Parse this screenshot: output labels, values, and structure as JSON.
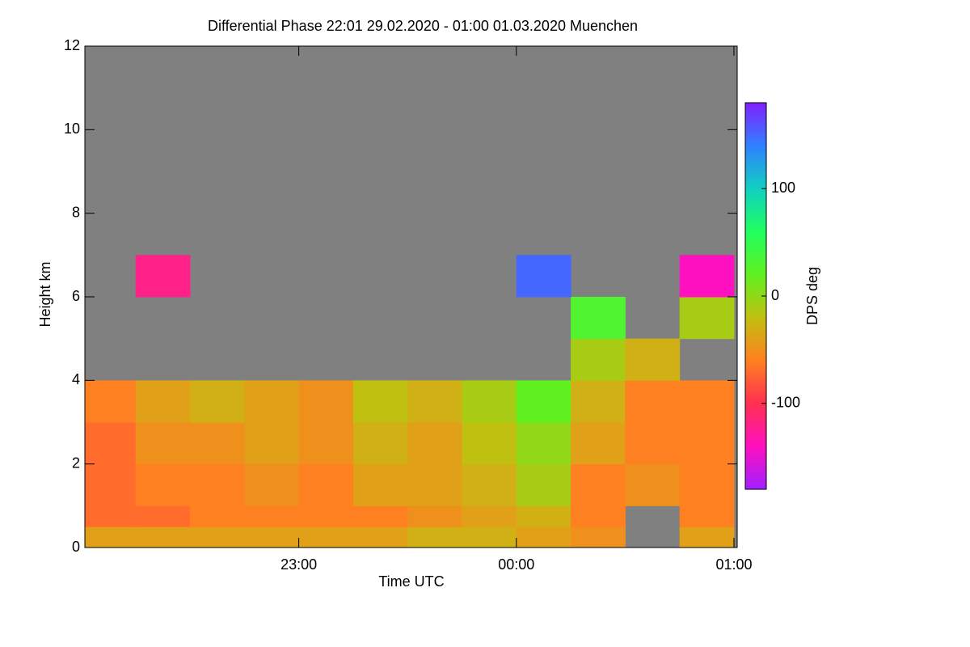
{
  "chart_data": {
    "type": "heatmap",
    "title": "Differential Phase   22:01 29.02.2020 - 01:00 01.03.2020 Muenchen",
    "x_label": "Time UTC",
    "y_label": "Height km",
    "colorbar_label": "DPS deg",
    "x_edges": [
      22.017,
      22.25,
      22.5,
      22.75,
      23.0,
      23.25,
      23.5,
      23.75,
      24.0,
      24.25,
      24.5,
      24.75,
      25.0
    ],
    "y_edges": [
      0,
      0.5,
      1,
      2,
      3,
      4,
      5,
      6,
      7
    ],
    "values": [
      [
        -40,
        -40,
        -40,
        -40,
        -40,
        -40,
        -30,
        -30,
        -40,
        -50,
        null,
        -40
      ],
      [
        -70,
        -70,
        -60,
        -60,
        -60,
        -60,
        -50,
        -40,
        -30,
        -60,
        null,
        -60
      ],
      [
        -70,
        -60,
        -60,
        -50,
        -60,
        -40,
        -40,
        -30,
        -10,
        -60,
        -50,
        -60
      ],
      [
        -70,
        -50,
        -50,
        -40,
        -50,
        -30,
        -40,
        -20,
        0,
        -40,
        -60,
        -60
      ],
      [
        -60,
        -40,
        -30,
        -40,
        -50,
        -20,
        -30,
        -10,
        20,
        -30,
        -60,
        -60
      ],
      [
        null,
        null,
        null,
        null,
        null,
        null,
        null,
        null,
        null,
        -10,
        -30,
        null
      ],
      [
        null,
        null,
        null,
        null,
        null,
        null,
        null,
        null,
        null,
        30,
        null,
        -10
      ],
      [
        null,
        -120,
        null,
        null,
        null,
        null,
        null,
        null,
        150,
        null,
        null,
        -140
      ]
    ],
    "xlim": [
      22.017,
      25.015
    ],
    "ylim": [
      0,
      12
    ],
    "xticks": [
      {
        "value": 23,
        "label": "23:00"
      },
      {
        "value": 24,
        "label": "00:00"
      },
      {
        "value": 25,
        "label": "01:00"
      }
    ],
    "yticks": [
      0,
      2,
      4,
      6,
      8,
      10,
      12
    ],
    "clim": [
      -180,
      180
    ],
    "cticks": [
      -100,
      0,
      100
    ],
    "colormap": [
      "#a020ff",
      "#ff10c0",
      "#ff3050",
      "#ff8020",
      "#c0c010",
      "#60f020",
      "#20ff60",
      "#10d0c0",
      "#3080ff",
      "#8020ff"
    ],
    "missing_color": "#808080"
  }
}
